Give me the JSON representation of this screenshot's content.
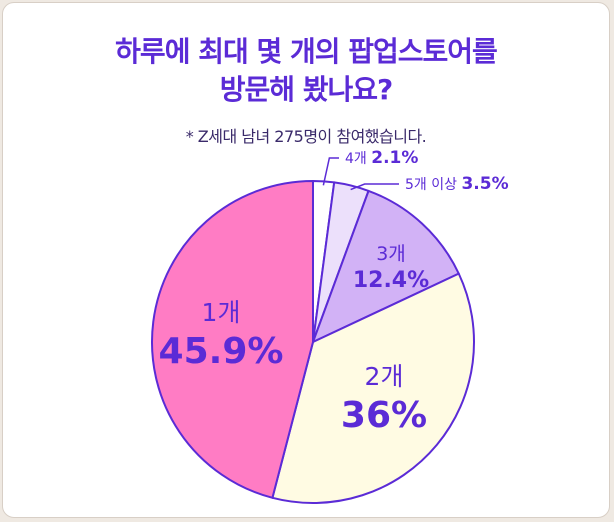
{
  "title_line1": "하루에 최대 몇 개의 팝업스토어를",
  "title_line2": "방문해 봤나요?",
  "subtitle": "* Z세대 남녀 275명이 참여했습니다.",
  "colors": {
    "accent": "#5b2bd6",
    "stroke": "#5b2bd6"
  },
  "chart_data": {
    "type": "pie",
    "title": "하루에 최대 몇 개의 팝업스토어를 방문해 봤나요?",
    "note": "* Z세대 남녀 275명이 참여했습니다.",
    "slices": [
      {
        "name": "4개",
        "value": 2.1,
        "value_label": "2.1%",
        "color": "#ffffff"
      },
      {
        "name": "5개 이상",
        "value": 3.5,
        "value_label": "3.5%",
        "color": "#ece0fb"
      },
      {
        "name": "3개",
        "value": 12.4,
        "value_label": "12.4%",
        "color": "#d2b2f6"
      },
      {
        "name": "2개",
        "value": 36,
        "value_label": "36%",
        "color": "#fffbe3"
      },
      {
        "name": "1개",
        "value": 45.9,
        "value_label": "45.9%",
        "color": "#ff7cc4"
      }
    ]
  }
}
